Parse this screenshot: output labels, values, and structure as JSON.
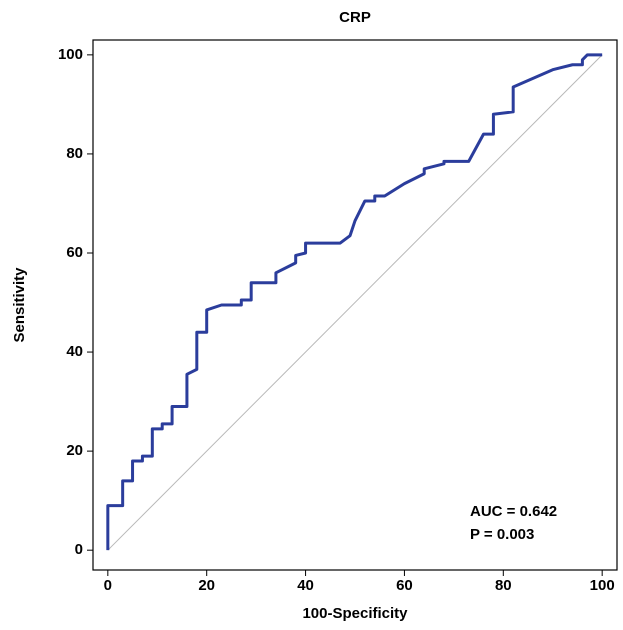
{
  "chart_data": {
    "type": "line",
    "title": "CRP",
    "x_label": "100-Specificity",
    "y_label": "Sensitivity",
    "annotations": [
      "AUC = 0.642",
      "P = 0.003"
    ],
    "series": [
      {
        "color": "#2b3d9c",
        "x": [
          0,
          0,
          3,
          3,
          5,
          5,
          7,
          7,
          9,
          9,
          11,
          11,
          13,
          13,
          16,
          16,
          18,
          18,
          20,
          20,
          23,
          27,
          27,
          29,
          29,
          34,
          34,
          37,
          38,
          38,
          40,
          40,
          47,
          49,
          50,
          52,
          54,
          54,
          56,
          60,
          64,
          64,
          68,
          68,
          73,
          76,
          78,
          78,
          82,
          82,
          90,
          94,
          96,
          96,
          97,
          100
        ],
        "values": [
          0,
          9,
          9,
          14,
          14,
          18,
          18,
          19,
          19,
          24.5,
          24.5,
          25.5,
          25.5,
          29,
          29,
          35.5,
          36.5,
          44,
          44,
          48.5,
          49.5,
          49.5,
          50.5,
          50.5,
          54,
          54,
          56,
          57.5,
          58,
          59.5,
          60,
          62,
          62,
          63.5,
          66.5,
          70.5,
          70.5,
          71.5,
          71.5,
          74,
          76,
          77,
          78,
          78.5,
          78.5,
          84,
          84,
          88,
          88.5,
          93.5,
          97,
          98,
          98,
          99,
          100,
          100
        ]
      },
      {
        "color": "#b8b8b8",
        "x": [
          0,
          100
        ],
        "values": [
          0,
          100
        ]
      }
    ],
    "xlim": [
      -3,
      103
    ],
    "ylim": [
      -4,
      103
    ],
    "xticks": [
      0,
      20,
      40,
      60,
      80,
      100
    ],
    "yticks": [
      0,
      20,
      40,
      60,
      80,
      100
    ]
  }
}
